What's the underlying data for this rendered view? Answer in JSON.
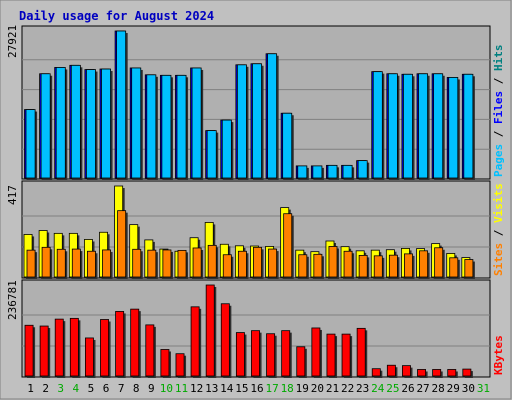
{
  "chart_data": {
    "type": "bar",
    "title": "Daily usage for August 2024",
    "categories": [
      "1",
      "2",
      "3",
      "4",
      "5",
      "6",
      "7",
      "8",
      "9",
      "10",
      "11",
      "12",
      "13",
      "14",
      "15",
      "16",
      "17",
      "18",
      "19",
      "20",
      "21",
      "22",
      "23",
      "24",
      "25",
      "26",
      "27",
      "28",
      "29",
      "30",
      "31"
    ],
    "weekend_days": [
      "3",
      "4",
      "10",
      "11",
      "17",
      "18",
      "24",
      "25",
      "31"
    ],
    "colors": {
      "background": "#c0c0c0",
      "plot_bg": "#b0b0b0",
      "title": "#0000c0",
      "pages": "#00c0ff",
      "hits": "#008080",
      "files": "#0000ff",
      "visits": "#ffff00",
      "sites": "#ff8000",
      "kbytes": "#ff0000",
      "weekend_label": "#00aa00",
      "weekday_label": "#000000"
    },
    "panels": [
      {
        "id": "top",
        "max_label": "27921",
        "ymax": 27921,
        "right_labels": [
          {
            "text": "Pages",
            "color": "#00c0ff"
          },
          {
            "text": " / ",
            "color": "#000000"
          },
          {
            "text": "Files",
            "color": "#0000ff"
          },
          {
            "text": " / ",
            "color": "#000000"
          },
          {
            "text": "Hits",
            "color": "#008080"
          }
        ],
        "series": [
          {
            "name": "Hits",
            "color": "#008080",
            "values": [
              0,
              0,
              0,
              0,
              0,
              0,
              0,
              0,
              0,
              0,
              0,
              0,
              0,
              0,
              0,
              0,
              0,
              0,
              0,
              0,
              0,
              0,
              0,
              0,
              0,
              0,
              0,
              0,
              0,
              0,
              0
            ]
          },
          {
            "name": "Files",
            "color": "#0000ff",
            "values": [
              13000,
              19800,
              21000,
              21400,
              20600,
              20700,
              27921,
              20900,
              19600,
              19500,
              19500,
              20900,
              9000,
              11000,
              21500,
              21700,
              23600,
              12300,
              2300,
              2300,
              2400,
              2400,
              3300,
              20200,
              19800,
              19700,
              19800,
              19800,
              19100,
              19700,
              0
            ]
          },
          {
            "name": "Pages",
            "color": "#00c0ff",
            "values": [
              13000,
              19800,
              21000,
              21400,
              20600,
              20700,
              27921,
              20900,
              19600,
              19500,
              19500,
              20900,
              9000,
              11000,
              21500,
              21700,
              23600,
              12300,
              2300,
              2300,
              2400,
              2400,
              3300,
              20200,
              19800,
              19700,
              19800,
              19800,
              19100,
              19700,
              0
            ]
          }
        ]
      },
      {
        "id": "middle",
        "max_label": "417",
        "ymax": 417,
        "right_labels": [
          {
            "text": "Sites",
            "color": "#ff8000"
          },
          {
            "text": " / ",
            "color": "#000000"
          },
          {
            "text": "Visits",
            "color": "#ffff00"
          }
        ],
        "series": [
          {
            "name": "Visits",
            "color": "#ffff00",
            "values": [
              195,
              213,
              200,
              200,
              172,
              205,
              417,
              240,
              170,
              128,
              118,
              180,
              250,
              150,
              143,
              142,
              140,
              318,
              123,
              116,
              165,
              139,
              120,
              123,
              125,
              131,
              130,
              153,
              108,
              89,
              0
            ]
          },
          {
            "name": "Sites",
            "color": "#ff8000",
            "values": [
              123,
              136,
              127,
              128,
              118,
              124,
              304,
              127,
              123,
              124,
              122,
              133,
              145,
              102,
              118,
              136,
              128,
              290,
              102,
              104,
              140,
              118,
              99,
              97,
              100,
              106,
              120,
              134,
              88,
              80,
              0
            ]
          }
        ]
      },
      {
        "id": "bottom",
        "max_label": "236781",
        "ymax": 236781,
        "right_labels": [
          {
            "text": "KBytes",
            "color": "#ff0000"
          }
        ],
        "series": [
          {
            "name": "KBytes",
            "color": "#ff0000",
            "values": [
              132000,
              130000,
              148000,
              150000,
              99000,
              147000,
              168000,
              174000,
              133000,
              69000,
              58000,
              180000,
              236781,
              188000,
              113000,
              118000,
              110000,
              118000,
              76000,
              125000,
              109000,
              109000,
              124000,
              19000,
              28000,
              27000,
              17000,
              17000,
              17000,
              18000,
              0
            ]
          }
        ]
      }
    ]
  }
}
